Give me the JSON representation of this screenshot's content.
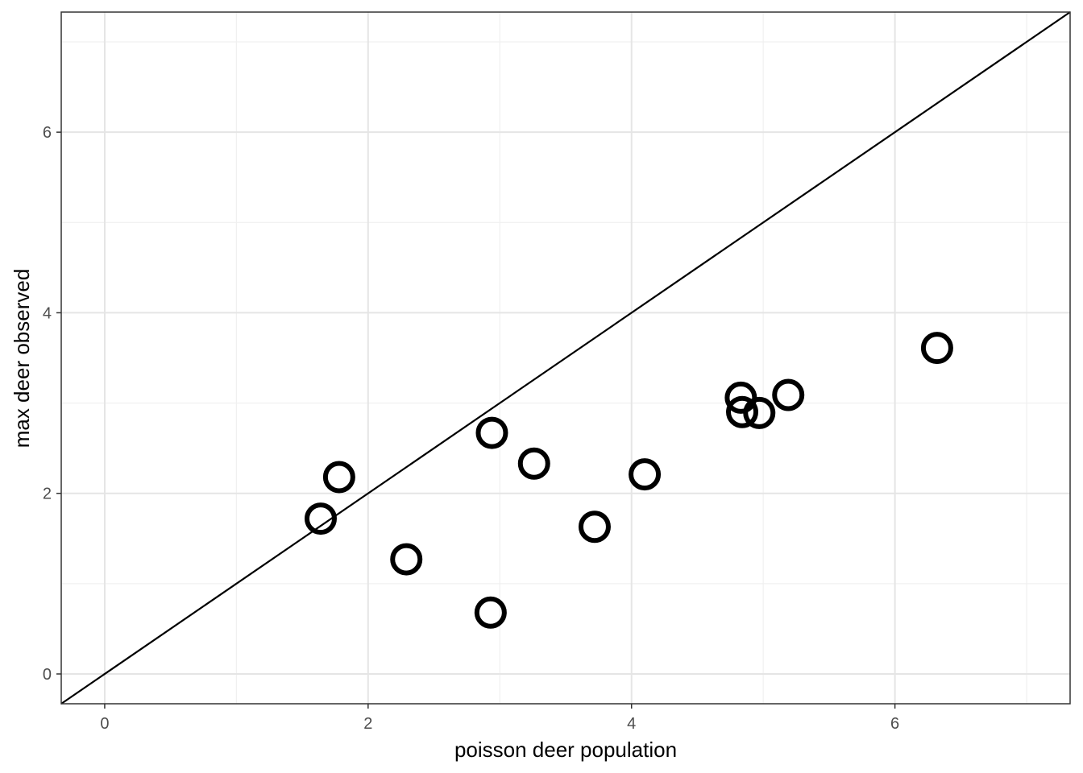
{
  "chart_data": {
    "type": "scatter",
    "title": "",
    "xlabel": "poisson deer population",
    "ylabel": "max deer observed",
    "xlim": [
      -0.33,
      7.33
    ],
    "ylim": [
      -0.33,
      7.33
    ],
    "x_ticks": [
      0,
      2,
      4,
      6
    ],
    "y_ticks": [
      0,
      2,
      4,
      6
    ],
    "x_tick_labels": [
      "0",
      "2",
      "4",
      "6"
    ],
    "y_tick_labels": [
      "0",
      "2",
      "4",
      "6"
    ],
    "grid": true,
    "reference_line": {
      "slope": 1,
      "intercept": 0
    },
    "points": [
      {
        "x": 1.64,
        "y": 1.72
      },
      {
        "x": 1.78,
        "y": 2.18
      },
      {
        "x": 2.29,
        "y": 1.27
      },
      {
        "x": 2.93,
        "y": 0.68
      },
      {
        "x": 2.94,
        "y": 2.67
      },
      {
        "x": 3.26,
        "y": 2.33
      },
      {
        "x": 3.72,
        "y": 1.63
      },
      {
        "x": 4.1,
        "y": 2.21
      },
      {
        "x": 4.83,
        "y": 3.06
      },
      {
        "x": 4.84,
        "y": 2.9
      },
      {
        "x": 4.97,
        "y": 2.89
      },
      {
        "x": 5.19,
        "y": 3.09
      },
      {
        "x": 6.32,
        "y": 3.61
      }
    ],
    "colors": {
      "points": "#000000",
      "line": "#000000",
      "panel_border": "#333333"
    }
  }
}
